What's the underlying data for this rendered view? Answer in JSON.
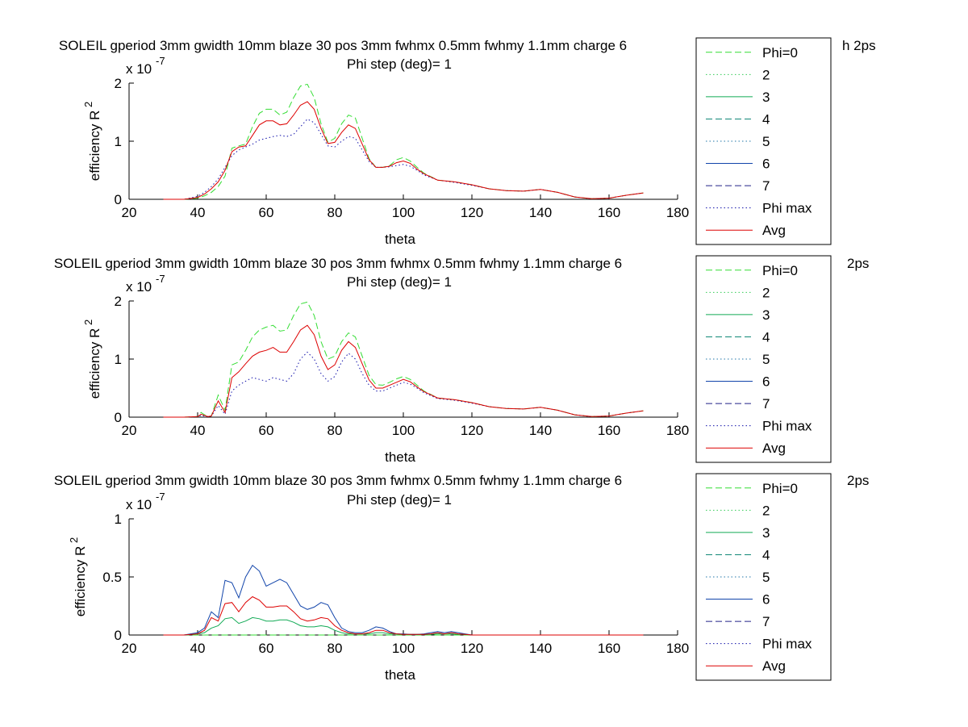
{
  "figure": {
    "background": "#ffffff",
    "axes_color": "#000000"
  },
  "legend_entries": [
    {
      "label": "Phi=0",
      "color": "#33dd33",
      "dash": "dashed"
    },
    {
      "label": "2",
      "color": "#33cc55",
      "dash": "dotted"
    },
    {
      "label": "3",
      "color": "#11aa55",
      "dash": "solid"
    },
    {
      "label": "4",
      "color": "#118877",
      "dash": "dashed"
    },
    {
      "label": "5",
      "color": "#2277aa",
      "dash": "dotted"
    },
    {
      "label": "6",
      "color": "#1144aa",
      "dash": "solid"
    },
    {
      "label": "7",
      "color": "#222288",
      "dash": "dashed"
    },
    {
      "label": "Phi max",
      "color": "#1111aa",
      "dash": "dotted"
    },
    {
      "label": "Avg",
      "color": "#dd0000",
      "dash": "solid"
    }
  ],
  "chart_data": [
    {
      "type": "line",
      "title": "SOLEIL gperiod 3mm gwidth 10mm blaze 30 pos 3mm fwhmx 0.5mm fwhmy 1.1mm charge 6",
      "title_tail": "h 2ps",
      "subtitle": "Phi step (deg)= 1",
      "xlabel": "theta",
      "ylabel": "efficiency R",
      "ylabel_sup": "2",
      "scale_base": "x 10",
      "scale_exp": "-7",
      "xlim": [
        20,
        180
      ],
      "ylim": [
        0,
        2
      ],
      "xticks": [
        "20",
        "40",
        "60",
        "80",
        "100",
        "120",
        "140",
        "160",
        "180"
      ],
      "yticks": [
        "0",
        "1",
        "2"
      ],
      "x": [
        30,
        36,
        40,
        42,
        44,
        46,
        48,
        50,
        52,
        54,
        56,
        58,
        60,
        62,
        64,
        66,
        68,
        70,
        72,
        74,
        76,
        78,
        80,
        82,
        84,
        86,
        88,
        90,
        92,
        94,
        96,
        98,
        100,
        102,
        104,
        106,
        110,
        115,
        120,
        125,
        130,
        135,
        140,
        145,
        150,
        155,
        160,
        165,
        170
      ],
      "series": [
        {
          "name": "Phi=0",
          "values": [
            0,
            0,
            0.02,
            0.06,
            0.12,
            0.22,
            0.4,
            0.88,
            0.92,
            0.95,
            1.25,
            1.48,
            1.55,
            1.55,
            1.45,
            1.5,
            1.75,
            1.95,
            1.98,
            1.75,
            1.3,
            0.98,
            1.05,
            1.3,
            1.45,
            1.4,
            1.05,
            0.7,
            0.55,
            0.55,
            0.58,
            0.68,
            0.72,
            0.66,
            0.55,
            0.45,
            0.33,
            0.3,
            0.25,
            0.18,
            0.15,
            0.14,
            0.17,
            0.12,
            0.04,
            0.01,
            0.02,
            0.07,
            0.11
          ]
        },
        {
          "name": "Phi max",
          "values": [
            0,
            0,
            0.05,
            0.12,
            0.22,
            0.35,
            0.55,
            0.75,
            0.85,
            0.9,
            0.95,
            1.02,
            1.05,
            1.08,
            1.1,
            1.08,
            1.12,
            1.25,
            1.38,
            1.32,
            1.12,
            0.92,
            0.9,
            1.0,
            1.08,
            1.05,
            0.85,
            0.65,
            0.55,
            0.55,
            0.56,
            0.58,
            0.6,
            0.57,
            0.5,
            0.42,
            0.33,
            0.29,
            0.24,
            0.18,
            0.15,
            0.14,
            0.17,
            0.12,
            0.04,
            0.01,
            0.02,
            0.07,
            0.11
          ]
        },
        {
          "name": "Avg",
          "values": [
            0,
            0,
            0.03,
            0.09,
            0.18,
            0.3,
            0.5,
            0.82,
            0.9,
            0.92,
            1.1,
            1.28,
            1.35,
            1.35,
            1.28,
            1.3,
            1.45,
            1.62,
            1.68,
            1.55,
            1.22,
            0.96,
            0.98,
            1.15,
            1.28,
            1.22,
            0.95,
            0.68,
            0.55,
            0.55,
            0.57,
            0.63,
            0.66,
            0.62,
            0.52,
            0.44,
            0.33,
            0.3,
            0.25,
            0.18,
            0.15,
            0.14,
            0.17,
            0.12,
            0.04,
            0.01,
            0.02,
            0.07,
            0.11
          ]
        }
      ]
    },
    {
      "type": "line",
      "title": "SOLEIL gperiod 3mm gwidth 10mm blaze 30 pos 3mm fwhmx 0.5mm fwhmy 1.1mm charge 6",
      "title_tail": "2ps",
      "subtitle": "Phi step (deg)= 1",
      "xlabel": "theta",
      "ylabel": "efficiency R",
      "ylabel_sup": "2",
      "scale_base": "x 10",
      "scale_exp": "-7",
      "xlim": [
        20,
        180
      ],
      "ylim": [
        0,
        2
      ],
      "xticks": [
        "20",
        "40",
        "60",
        "80",
        "100",
        "120",
        "140",
        "160",
        "180"
      ],
      "yticks": [
        "0",
        "1",
        "2"
      ],
      "x": [
        30,
        36,
        40,
        41,
        42,
        43,
        44,
        46,
        48,
        50,
        52,
        54,
        56,
        58,
        60,
        62,
        64,
        66,
        68,
        70,
        72,
        74,
        76,
        78,
        80,
        82,
        84,
        86,
        88,
        90,
        92,
        94,
        96,
        98,
        100,
        102,
        104,
        106,
        110,
        115,
        120,
        125,
        130,
        135,
        140,
        145,
        150,
        155,
        160,
        165,
        170
      ],
      "series": [
        {
          "name": "Phi=0",
          "values": [
            0,
            0,
            0.01,
            0.08,
            0.04,
            0.01,
            0.02,
            0.38,
            0.12,
            0.9,
            0.95,
            1.15,
            1.38,
            1.5,
            1.55,
            1.58,
            1.48,
            1.5,
            1.75,
            1.95,
            1.98,
            1.75,
            1.3,
            1.0,
            1.05,
            1.3,
            1.45,
            1.38,
            1.05,
            0.72,
            0.56,
            0.55,
            0.6,
            0.66,
            0.7,
            0.65,
            0.55,
            0.45,
            0.33,
            0.3,
            0.25,
            0.18,
            0.15,
            0.14,
            0.17,
            0.12,
            0.04,
            0.01,
            0.02,
            0.07,
            0.11
          ]
        },
        {
          "name": "Phi max",
          "values": [
            0,
            0,
            0.01,
            0.03,
            0.02,
            0.01,
            0.02,
            0.2,
            0.05,
            0.45,
            0.55,
            0.62,
            0.68,
            0.65,
            0.62,
            0.68,
            0.65,
            0.62,
            0.75,
            1.0,
            1.12,
            1.0,
            0.75,
            0.62,
            0.7,
            0.95,
            1.1,
            1.0,
            0.75,
            0.55,
            0.45,
            0.45,
            0.5,
            0.55,
            0.6,
            0.57,
            0.5,
            0.42,
            0.32,
            0.29,
            0.24,
            0.18,
            0.15,
            0.14,
            0.17,
            0.12,
            0.04,
            0.01,
            0.02,
            0.07,
            0.11
          ]
        },
        {
          "name": "Avg",
          "values": [
            0,
            0,
            0.01,
            0.05,
            0.03,
            0.01,
            0.02,
            0.28,
            0.08,
            0.68,
            0.78,
            0.92,
            1.05,
            1.12,
            1.15,
            1.2,
            1.12,
            1.12,
            1.3,
            1.5,
            1.58,
            1.42,
            1.05,
            0.82,
            0.9,
            1.15,
            1.3,
            1.2,
            0.92,
            0.64,
            0.5,
            0.5,
            0.55,
            0.6,
            0.65,
            0.61,
            0.52,
            0.44,
            0.33,
            0.3,
            0.25,
            0.18,
            0.15,
            0.14,
            0.17,
            0.12,
            0.04,
            0.01,
            0.02,
            0.07,
            0.11
          ]
        }
      ]
    },
    {
      "type": "line",
      "title": "SOLEIL gperiod 3mm gwidth 10mm blaze 30 pos 3mm fwhmx 0.5mm fwhmy 1.1mm charge 6",
      "title_tail": "2ps",
      "subtitle": "Phi step (deg)= 1",
      "xlabel": "theta",
      "ylabel": "efficiency R",
      "ylabel_sup": "2",
      "scale_base": "x 10",
      "scale_exp": "-7",
      "xlim": [
        20,
        180
      ],
      "ylim": [
        0,
        1
      ],
      "xticks": [
        "20",
        "40",
        "60",
        "80",
        "100",
        "120",
        "140",
        "160",
        "180"
      ],
      "yticks": [
        "0",
        "0.5",
        "1"
      ],
      "x": [
        30,
        36,
        40,
        42,
        44,
        46,
        48,
        50,
        52,
        54,
        56,
        58,
        60,
        62,
        64,
        66,
        68,
        70,
        72,
        74,
        76,
        78,
        80,
        82,
        84,
        86,
        88,
        90,
        92,
        94,
        96,
        98,
        100,
        102,
        104,
        106,
        108,
        110,
        112,
        114,
        116,
        118,
        120,
        125,
        130,
        135,
        140,
        145,
        150,
        155,
        160,
        165,
        170
      ],
      "series": [
        {
          "name": "Phi=0",
          "values": [
            0,
            0,
            0,
            0,
            0,
            0,
            0,
            0,
            0,
            0,
            0,
            0,
            0,
            0,
            0,
            0,
            0,
            0,
            0,
            0,
            0,
            0,
            0,
            0,
            0,
            0,
            0,
            0,
            0,
            0,
            0,
            0,
            0,
            0,
            0,
            0,
            0,
            0,
            0,
            0,
            0,
            0,
            0,
            0,
            0,
            0,
            0,
            0,
            0,
            0,
            0,
            0,
            0
          ]
        },
        {
          "name": "3",
          "values": [
            0,
            0,
            0.01,
            0.02,
            0.06,
            0.08,
            0.14,
            0.15,
            0.1,
            0.12,
            0.15,
            0.14,
            0.12,
            0.12,
            0.13,
            0.13,
            0.11,
            0.08,
            0.07,
            0.07,
            0.08,
            0.07,
            0.04,
            0.02,
            0.01,
            0.01,
            0.01,
            0.01,
            0.02,
            0.02,
            0.01,
            0.01,
            0.005,
            0.005,
            0.005,
            0.005,
            0.005,
            0.01,
            0.01,
            0.01,
            0.005,
            0.005,
            0,
            0,
            0,
            0,
            0,
            0,
            0,
            0,
            0,
            0,
            0
          ]
        },
        {
          "name": "6",
          "values": [
            0,
            0,
            0.02,
            0.06,
            0.2,
            0.15,
            0.47,
            0.45,
            0.32,
            0.5,
            0.6,
            0.55,
            0.42,
            0.45,
            0.48,
            0.45,
            0.35,
            0.25,
            0.22,
            0.24,
            0.28,
            0.26,
            0.15,
            0.06,
            0.03,
            0.02,
            0.02,
            0.04,
            0.07,
            0.06,
            0.03,
            0.01,
            0.01,
            0.005,
            0.005,
            0.01,
            0.02,
            0.03,
            0.02,
            0.03,
            0.02,
            0.01,
            0,
            0,
            0,
            0,
            0,
            0,
            0,
            0,
            0,
            0,
            0
          ]
        },
        {
          "name": "Avg",
          "values": [
            0,
            0,
            0.01,
            0.04,
            0.15,
            0.12,
            0.27,
            0.28,
            0.2,
            0.28,
            0.33,
            0.3,
            0.24,
            0.24,
            0.25,
            0.25,
            0.2,
            0.14,
            0.12,
            0.13,
            0.15,
            0.14,
            0.08,
            0.04,
            0.02,
            0.01,
            0.01,
            0.02,
            0.04,
            0.04,
            0.02,
            0.01,
            0.005,
            0.005,
            0.005,
            0.005,
            0.01,
            0.02,
            0.01,
            0.02,
            0.01,
            0.005,
            0,
            0,
            0,
            0,
            0,
            0,
            0,
            0,
            0,
            0,
            0
          ]
        }
      ]
    }
  ]
}
